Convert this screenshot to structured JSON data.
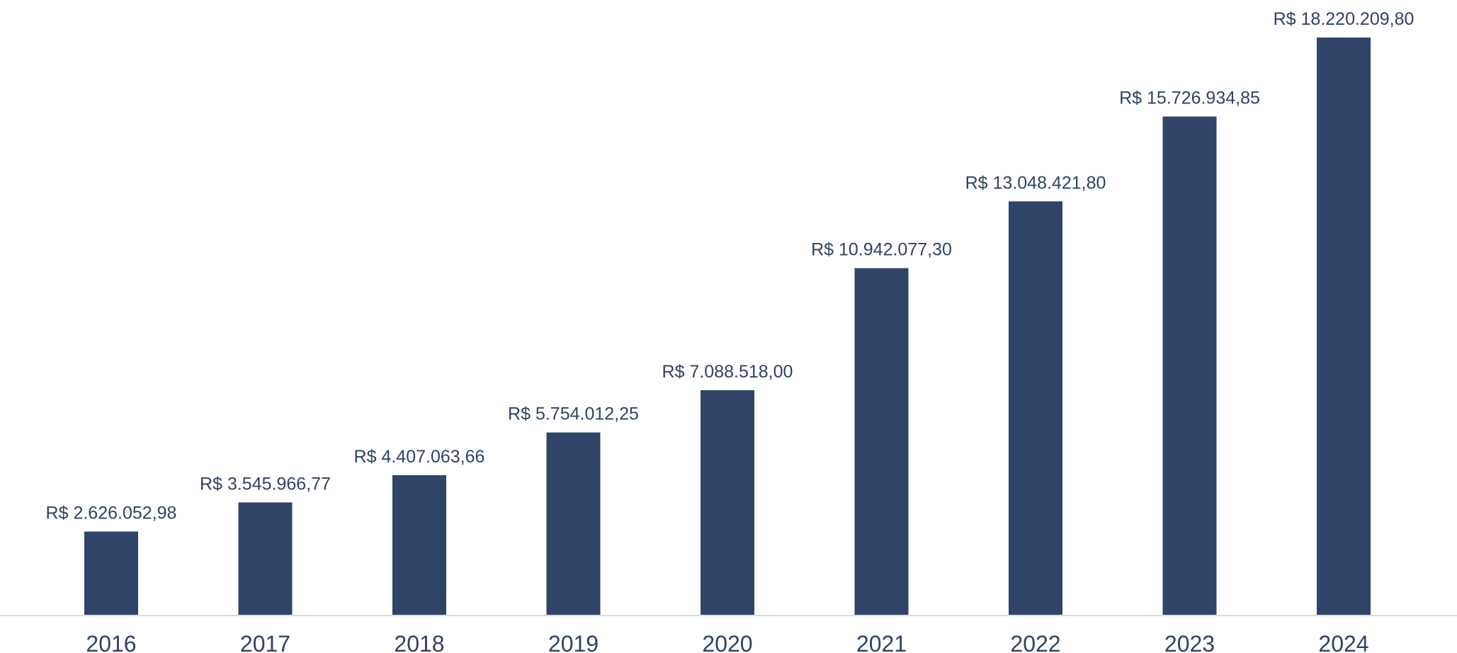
{
  "chart_data": {
    "type": "bar",
    "title": "",
    "xlabel": "",
    "ylabel": "",
    "categories": [
      "2016",
      "2017",
      "2018",
      "2019",
      "2020",
      "2021",
      "2022",
      "2023",
      "2024"
    ],
    "values": [
      2626052.98,
      3545966.77,
      4407063.66,
      5754012.25,
      7088518.0,
      10942077.3,
      13048421.8,
      15726934.85,
      18220209.8
    ],
    "data_labels": [
      "R$ 2.626.052,98",
      "R$ 3.545.966,77",
      "R$ 4.407.063,66",
      "R$ 5.754.012,25",
      "R$ 7.088.518,00",
      "R$ 10.942.077,30",
      "R$ 13.048.421,80",
      "R$ 15.726.934,85",
      "R$ 18.220.209,80"
    ],
    "ylim": [
      0,
      18220209.8
    ],
    "grid": false,
    "legend": "none",
    "colors": {
      "bar": "#304469",
      "axis": "#d9dce1",
      "text": "#2f4365"
    }
  }
}
